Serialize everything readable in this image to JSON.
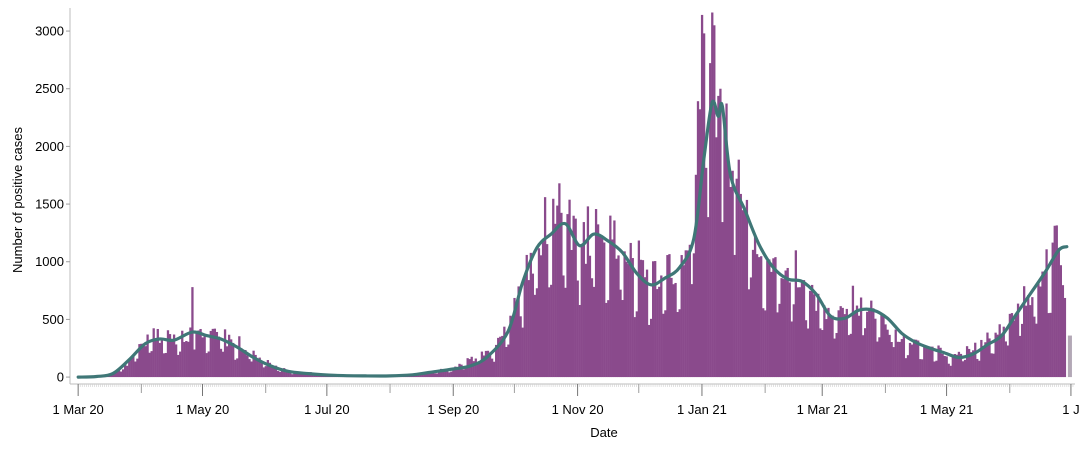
{
  "chart_data": {
    "type": "bar",
    "title": "",
    "xlabel": "Date",
    "ylabel": "Number of positive cases",
    "x_range": [
      "2020-02-26",
      "2021-07-03"
    ],
    "ylim": [
      -60,
      3200
    ],
    "y_ticks": [
      0,
      500,
      1000,
      1500,
      2000,
      2500,
      3000
    ],
    "x_ticks": [
      {
        "date": "2020-03-01",
        "label": "1 Mar 20"
      },
      {
        "date": "2020-05-01",
        "label": "1 May 20"
      },
      {
        "date": "2020-07-01",
        "label": "1 Jul 20"
      },
      {
        "date": "2020-09-01",
        "label": "1 Sep 20"
      },
      {
        "date": "2020-11-01",
        "label": "1 Nov 20"
      },
      {
        "date": "2021-01-01",
        "label": "1 Jan 21"
      },
      {
        "date": "2021-03-01",
        "label": "1 Mar 21"
      },
      {
        "date": "2021-05-01",
        "label": "1 May 21"
      },
      {
        "date": "2021-07-01",
        "label": "1 J"
      }
    ],
    "minor_x_ticks": [
      "2020-04-01",
      "2020-06-01",
      "2020-08-01",
      "2020-10-01",
      "2020-12-01",
      "2021-02-01",
      "2021-04-01",
      "2021-06-01"
    ],
    "grid": false,
    "legend": "none",
    "colors": {
      "bars": "#8a4a8c",
      "incomplete_bar": "#b3a8b6",
      "average_line": "#3f7777"
    },
    "daily_bar_keyframes": [
      [
        "2020-03-01",
        0
      ],
      [
        "2020-03-10",
        5
      ],
      [
        "2020-03-18",
        30
      ],
      [
        "2020-03-26",
        130
      ],
      [
        "2020-04-02",
        290
      ],
      [
        "2020-04-08",
        360
      ],
      [
        "2020-04-16",
        330
      ],
      [
        "2020-04-23",
        360
      ],
      [
        "2020-04-28",
        420
      ],
      [
        "2020-05-05",
        380
      ],
      [
        "2020-05-12",
        330
      ],
      [
        "2020-05-20",
        260
      ],
      [
        "2020-05-28",
        170
      ],
      [
        "2020-06-05",
        90
      ],
      [
        "2020-06-15",
        45
      ],
      [
        "2020-06-25",
        30
      ],
      [
        "2020-07-05",
        20
      ],
      [
        "2020-07-20",
        15
      ],
      [
        "2020-08-01",
        15
      ],
      [
        "2020-08-10",
        20
      ],
      [
        "2020-08-20",
        45
      ],
      [
        "2020-09-01",
        75
      ],
      [
        "2020-09-10",
        150
      ],
      [
        "2020-09-20",
        220
      ],
      [
        "2020-09-28",
        450
      ],
      [
        "2020-10-05",
        800
      ],
      [
        "2020-10-12",
        1150
      ],
      [
        "2020-10-20",
        1350
      ],
      [
        "2020-10-26",
        1450
      ],
      [
        "2020-11-03",
        1150
      ],
      [
        "2020-11-10",
        1300
      ],
      [
        "2020-11-17",
        1180
      ],
      [
        "2020-11-24",
        1080
      ],
      [
        "2020-12-01",
        920
      ],
      [
        "2020-12-08",
        850
      ],
      [
        "2020-12-15",
        900
      ],
      [
        "2020-12-22",
        1000
      ],
      [
        "2020-12-27",
        1350
      ],
      [
        "2021-01-01",
        2500
      ],
      [
        "2021-01-06",
        2700
      ],
      [
        "2021-01-12",
        2200
      ],
      [
        "2021-01-19",
        1500
      ],
      [
        "2021-01-26",
        1200
      ],
      [
        "2021-02-02",
        1000
      ],
      [
        "2021-02-09",
        880
      ],
      [
        "2021-02-16",
        880
      ],
      [
        "2021-02-23",
        720
      ],
      [
        "2021-03-02",
        560
      ],
      [
        "2021-03-09",
        520
      ],
      [
        "2021-03-16",
        600
      ],
      [
        "2021-03-23",
        600
      ],
      [
        "2021-03-30",
        520
      ],
      [
        "2021-04-06",
        380
      ],
      [
        "2021-04-13",
        300
      ],
      [
        "2021-04-20",
        250
      ],
      [
        "2021-04-27",
        220
      ],
      [
        "2021-05-05",
        180
      ],
      [
        "2021-05-12",
        220
      ],
      [
        "2021-05-19",
        300
      ],
      [
        "2021-05-26",
        400
      ],
      [
        "2021-06-02",
        560
      ],
      [
        "2021-06-09",
        700
      ],
      [
        "2021-06-16",
        900
      ],
      [
        "2021-06-23",
        1130
      ],
      [
        "2021-06-28",
        1200
      ]
    ],
    "daily_bar_overrides": [
      [
        "2020-04-26",
        780
      ],
      [
        "2020-10-23",
        1680
      ],
      [
        "2020-10-16",
        1560
      ],
      [
        "2020-11-06",
        1480
      ],
      [
        "2021-01-01",
        3140
      ],
      [
        "2021-01-02",
        2980
      ],
      [
        "2021-01-07",
        3050
      ],
      [
        "2021-01-10",
        2500
      ],
      [
        "2021-01-18",
        1720
      ],
      [
        "2021-02-05",
        1030
      ],
      [
        "2021-03-20",
        690
      ]
    ],
    "incomplete_day": [
      "2021-06-30",
      360
    ],
    "seven_day_average": [
      [
        "2020-03-01",
        0
      ],
      [
        "2020-03-10",
        5
      ],
      [
        "2020-03-18",
        30
      ],
      [
        "2020-03-26",
        150
      ],
      [
        "2020-04-03",
        290
      ],
      [
        "2020-04-10",
        330
      ],
      [
        "2020-04-17",
        320
      ],
      [
        "2020-04-26",
        390
      ],
      [
        "2020-05-03",
        360
      ],
      [
        "2020-05-10",
        330
      ],
      [
        "2020-05-18",
        260
      ],
      [
        "2020-05-26",
        170
      ],
      [
        "2020-06-03",
        100
      ],
      [
        "2020-06-12",
        50
      ],
      [
        "2020-06-22",
        30
      ],
      [
        "2020-07-05",
        15
      ],
      [
        "2020-07-20",
        10
      ],
      [
        "2020-08-01",
        10
      ],
      [
        "2020-08-12",
        20
      ],
      [
        "2020-08-20",
        40
      ],
      [
        "2020-09-01",
        70
      ],
      [
        "2020-09-10",
        100
      ],
      [
        "2020-09-18",
        180
      ],
      [
        "2020-09-28",
        400
      ],
      [
        "2020-10-05",
        820
      ],
      [
        "2020-10-12",
        1120
      ],
      [
        "2020-10-19",
        1240
      ],
      [
        "2020-10-26",
        1330
      ],
      [
        "2020-11-02",
        1140
      ],
      [
        "2020-11-09",
        1240
      ],
      [
        "2020-11-16",
        1180
      ],
      [
        "2020-11-23",
        1080
      ],
      [
        "2020-11-30",
        900
      ],
      [
        "2020-12-07",
        800
      ],
      [
        "2020-12-14",
        860
      ],
      [
        "2020-12-21",
        950
      ],
      [
        "2020-12-28",
        1200
      ],
      [
        "2021-01-02",
        1900
      ],
      [
        "2021-01-06",
        2380
      ],
      [
        "2021-01-09",
        2260
      ],
      [
        "2021-01-11",
        2350
      ],
      [
        "2021-01-15",
        1750
      ],
      [
        "2021-01-22",
        1450
      ],
      [
        "2021-01-29",
        1150
      ],
      [
        "2021-02-05",
        950
      ],
      [
        "2021-02-12",
        850
      ],
      [
        "2021-02-19",
        830
      ],
      [
        "2021-02-26",
        720
      ],
      [
        "2021-03-05",
        530
      ],
      [
        "2021-03-12",
        510
      ],
      [
        "2021-03-19",
        580
      ],
      [
        "2021-03-26",
        580
      ],
      [
        "2021-04-02",
        510
      ],
      [
        "2021-04-09",
        380
      ],
      [
        "2021-04-16",
        300
      ],
      [
        "2021-04-23",
        250
      ],
      [
        "2021-04-30",
        210
      ],
      [
        "2021-05-07",
        170
      ],
      [
        "2021-05-14",
        200
      ],
      [
        "2021-05-21",
        280
      ],
      [
        "2021-05-28",
        360
      ],
      [
        "2021-06-04",
        540
      ],
      [
        "2021-06-11",
        720
      ],
      [
        "2021-06-18",
        900
      ],
      [
        "2021-06-25",
        1100
      ],
      [
        "2021-06-29",
        1130
      ]
    ]
  }
}
